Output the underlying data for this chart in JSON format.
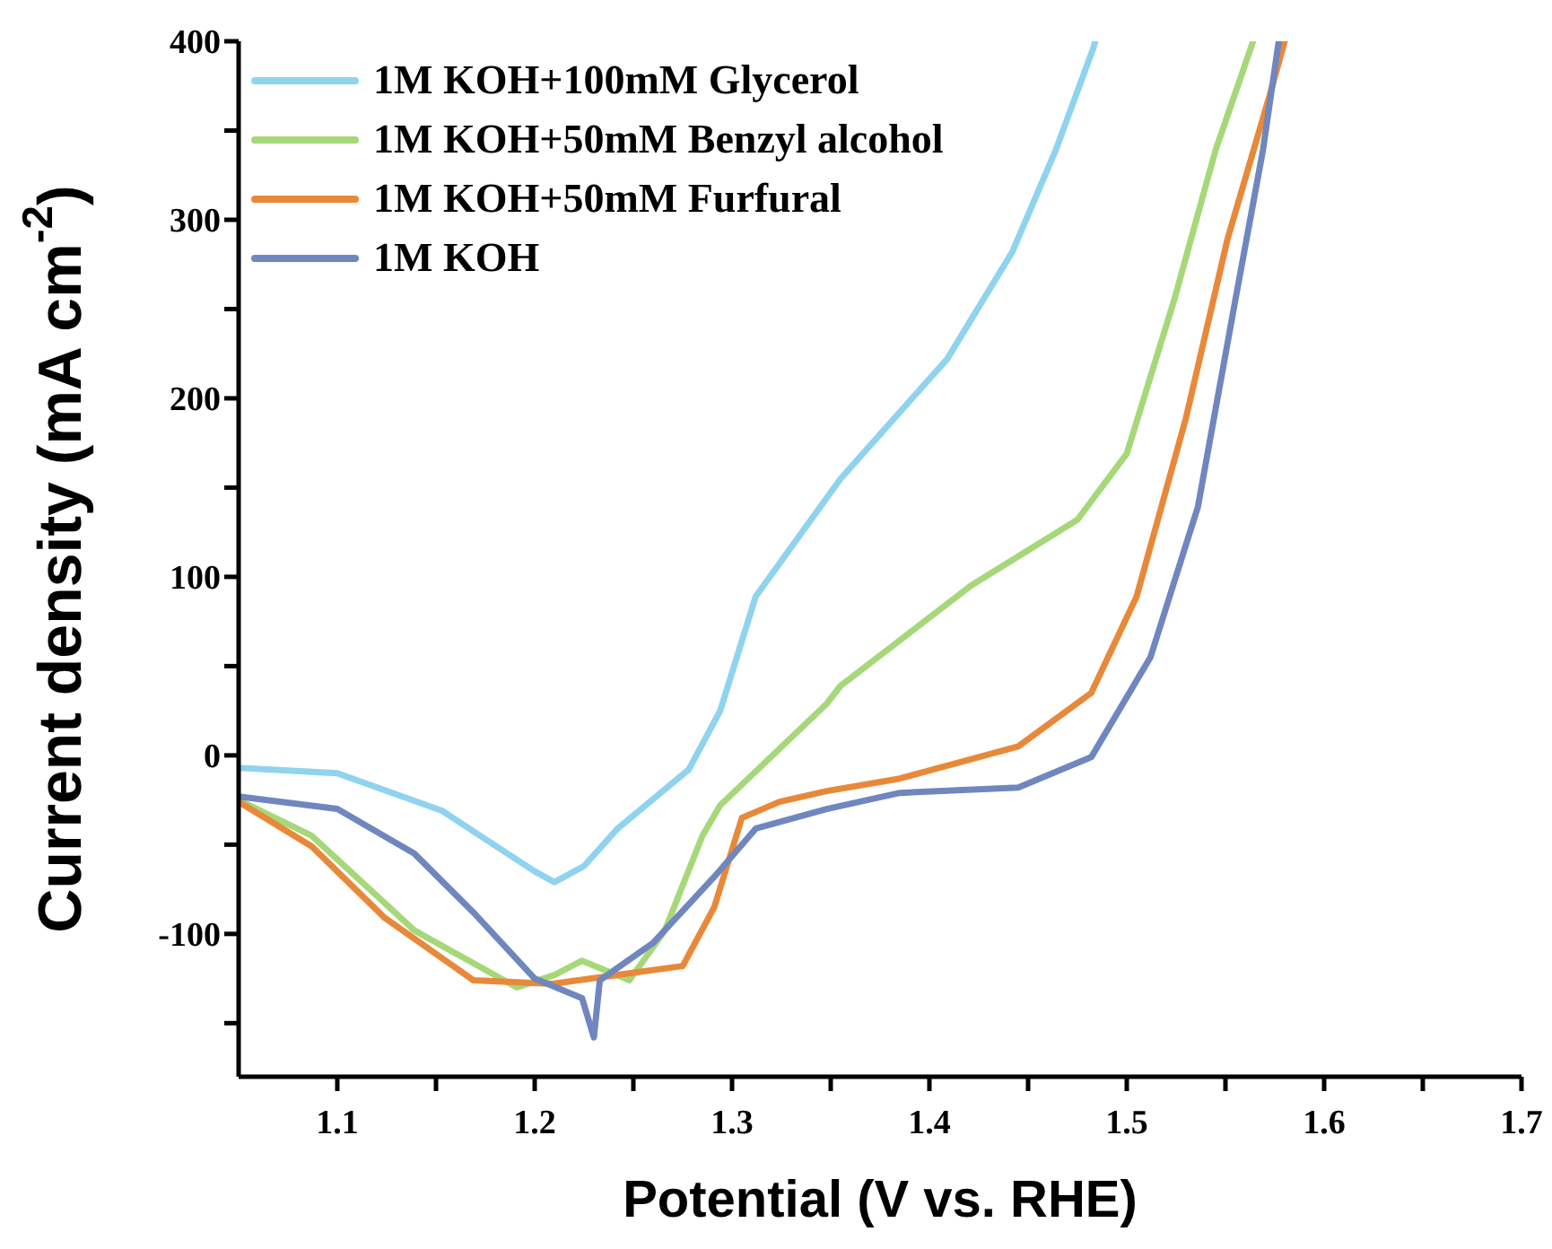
{
  "chart_data": {
    "type": "line",
    "xlabel": "Potential (V vs. RHE)",
    "ylabel": "Current density (mA cm$^{-2}$)",
    "xlim": [
      1.05,
      1.7
    ],
    "ylim": [
      -180,
      400
    ],
    "xticks": [
      1.1,
      {
        "value": 1.15,
        "label": null
      },
      1.2,
      {
        "value": 1.25,
        "label": null
      },
      1.3,
      {
        "value": 1.35,
        "label": null
      },
      1.4,
      {
        "value": 1.45,
        "label": null
      },
      1.5,
      {
        "value": 1.55,
        "label": null
      },
      1.6,
      {
        "value": 1.65,
        "label": null
      },
      1.7
    ],
    "yticks": [
      {
        "value": -150,
        "label": null
      },
      -100,
      {
        "value": -50,
        "label": null
      },
      0,
      {
        "value": 50,
        "label": null
      },
      100,
      {
        "value": 150,
        "label": null
      },
      200,
      {
        "value": 250,
        "label": null
      },
      300,
      {
        "value": 350,
        "label": null
      },
      400
    ],
    "grid": false,
    "legend": "top left",
    "marker": "none",
    "line_style": "solid",
    "series": [
      {
        "name": "1M KOH+100mM Glycerol",
        "color": "#8fd3ee",
        "x": [
          1.05,
          1.1,
          1.153,
          1.2,
          1.21,
          1.225,
          1.242,
          1.278,
          1.294,
          1.312,
          1.355,
          1.409,
          1.442,
          1.464,
          1.483,
          1.484
        ],
        "values": [
          -7,
          -10,
          -31,
          -65,
          -71,
          -62,
          -41,
          -8,
          25,
          89,
          155,
          222,
          282,
          339,
          396,
          400
        ]
      },
      {
        "name": "1M KOH+50mM Benzyl alcohol",
        "color": "#a6d87a",
        "x": [
          1.05,
          1.087,
          1.139,
          1.191,
          1.21,
          1.224,
          1.248,
          1.266,
          1.285,
          1.294,
          1.348,
          1.355,
          1.421,
          1.475,
          1.5,
          1.524,
          1.545,
          1.564
        ],
        "values": [
          -25,
          -45,
          -98,
          -130,
          -123,
          -115,
          -126,
          -98,
          -45,
          -28,
          29,
          39,
          95,
          132,
          169,
          255,
          339,
          400
        ]
      },
      {
        "name": "1M KOH+50mM Furfural",
        "color": "#e8893a",
        "x": [
          1.05,
          1.087,
          1.124,
          1.169,
          1.209,
          1.242,
          1.275,
          1.291,
          1.305,
          1.324,
          1.348,
          1.385,
          1.445,
          1.482,
          1.505,
          1.53,
          1.551,
          1.573,
          1.58
        ],
        "values": [
          -26,
          -51,
          -91,
          -126,
          -128,
          -123,
          -118,
          -85,
          -35,
          -26,
          -20,
          -13,
          5,
          35,
          89,
          189,
          289,
          372,
          400
        ]
      },
      {
        "name": "1M KOH",
        "color": "#6f86bf",
        "x": [
          1.05,
          1.1,
          1.139,
          1.169,
          1.2,
          1.224,
          1.23,
          1.233,
          1.26,
          1.291,
          1.312,
          1.348,
          1.385,
          1.445,
          1.482,
          1.512,
          1.536,
          1.555,
          1.569,
          1.577
        ],
        "values": [
          -23,
          -30,
          -55,
          -88,
          -125,
          -136,
          -158,
          -126,
          -105,
          -68,
          -41,
          -30,
          -21,
          -18,
          -1,
          55,
          139,
          255,
          339,
          400
        ]
      }
    ]
  }
}
